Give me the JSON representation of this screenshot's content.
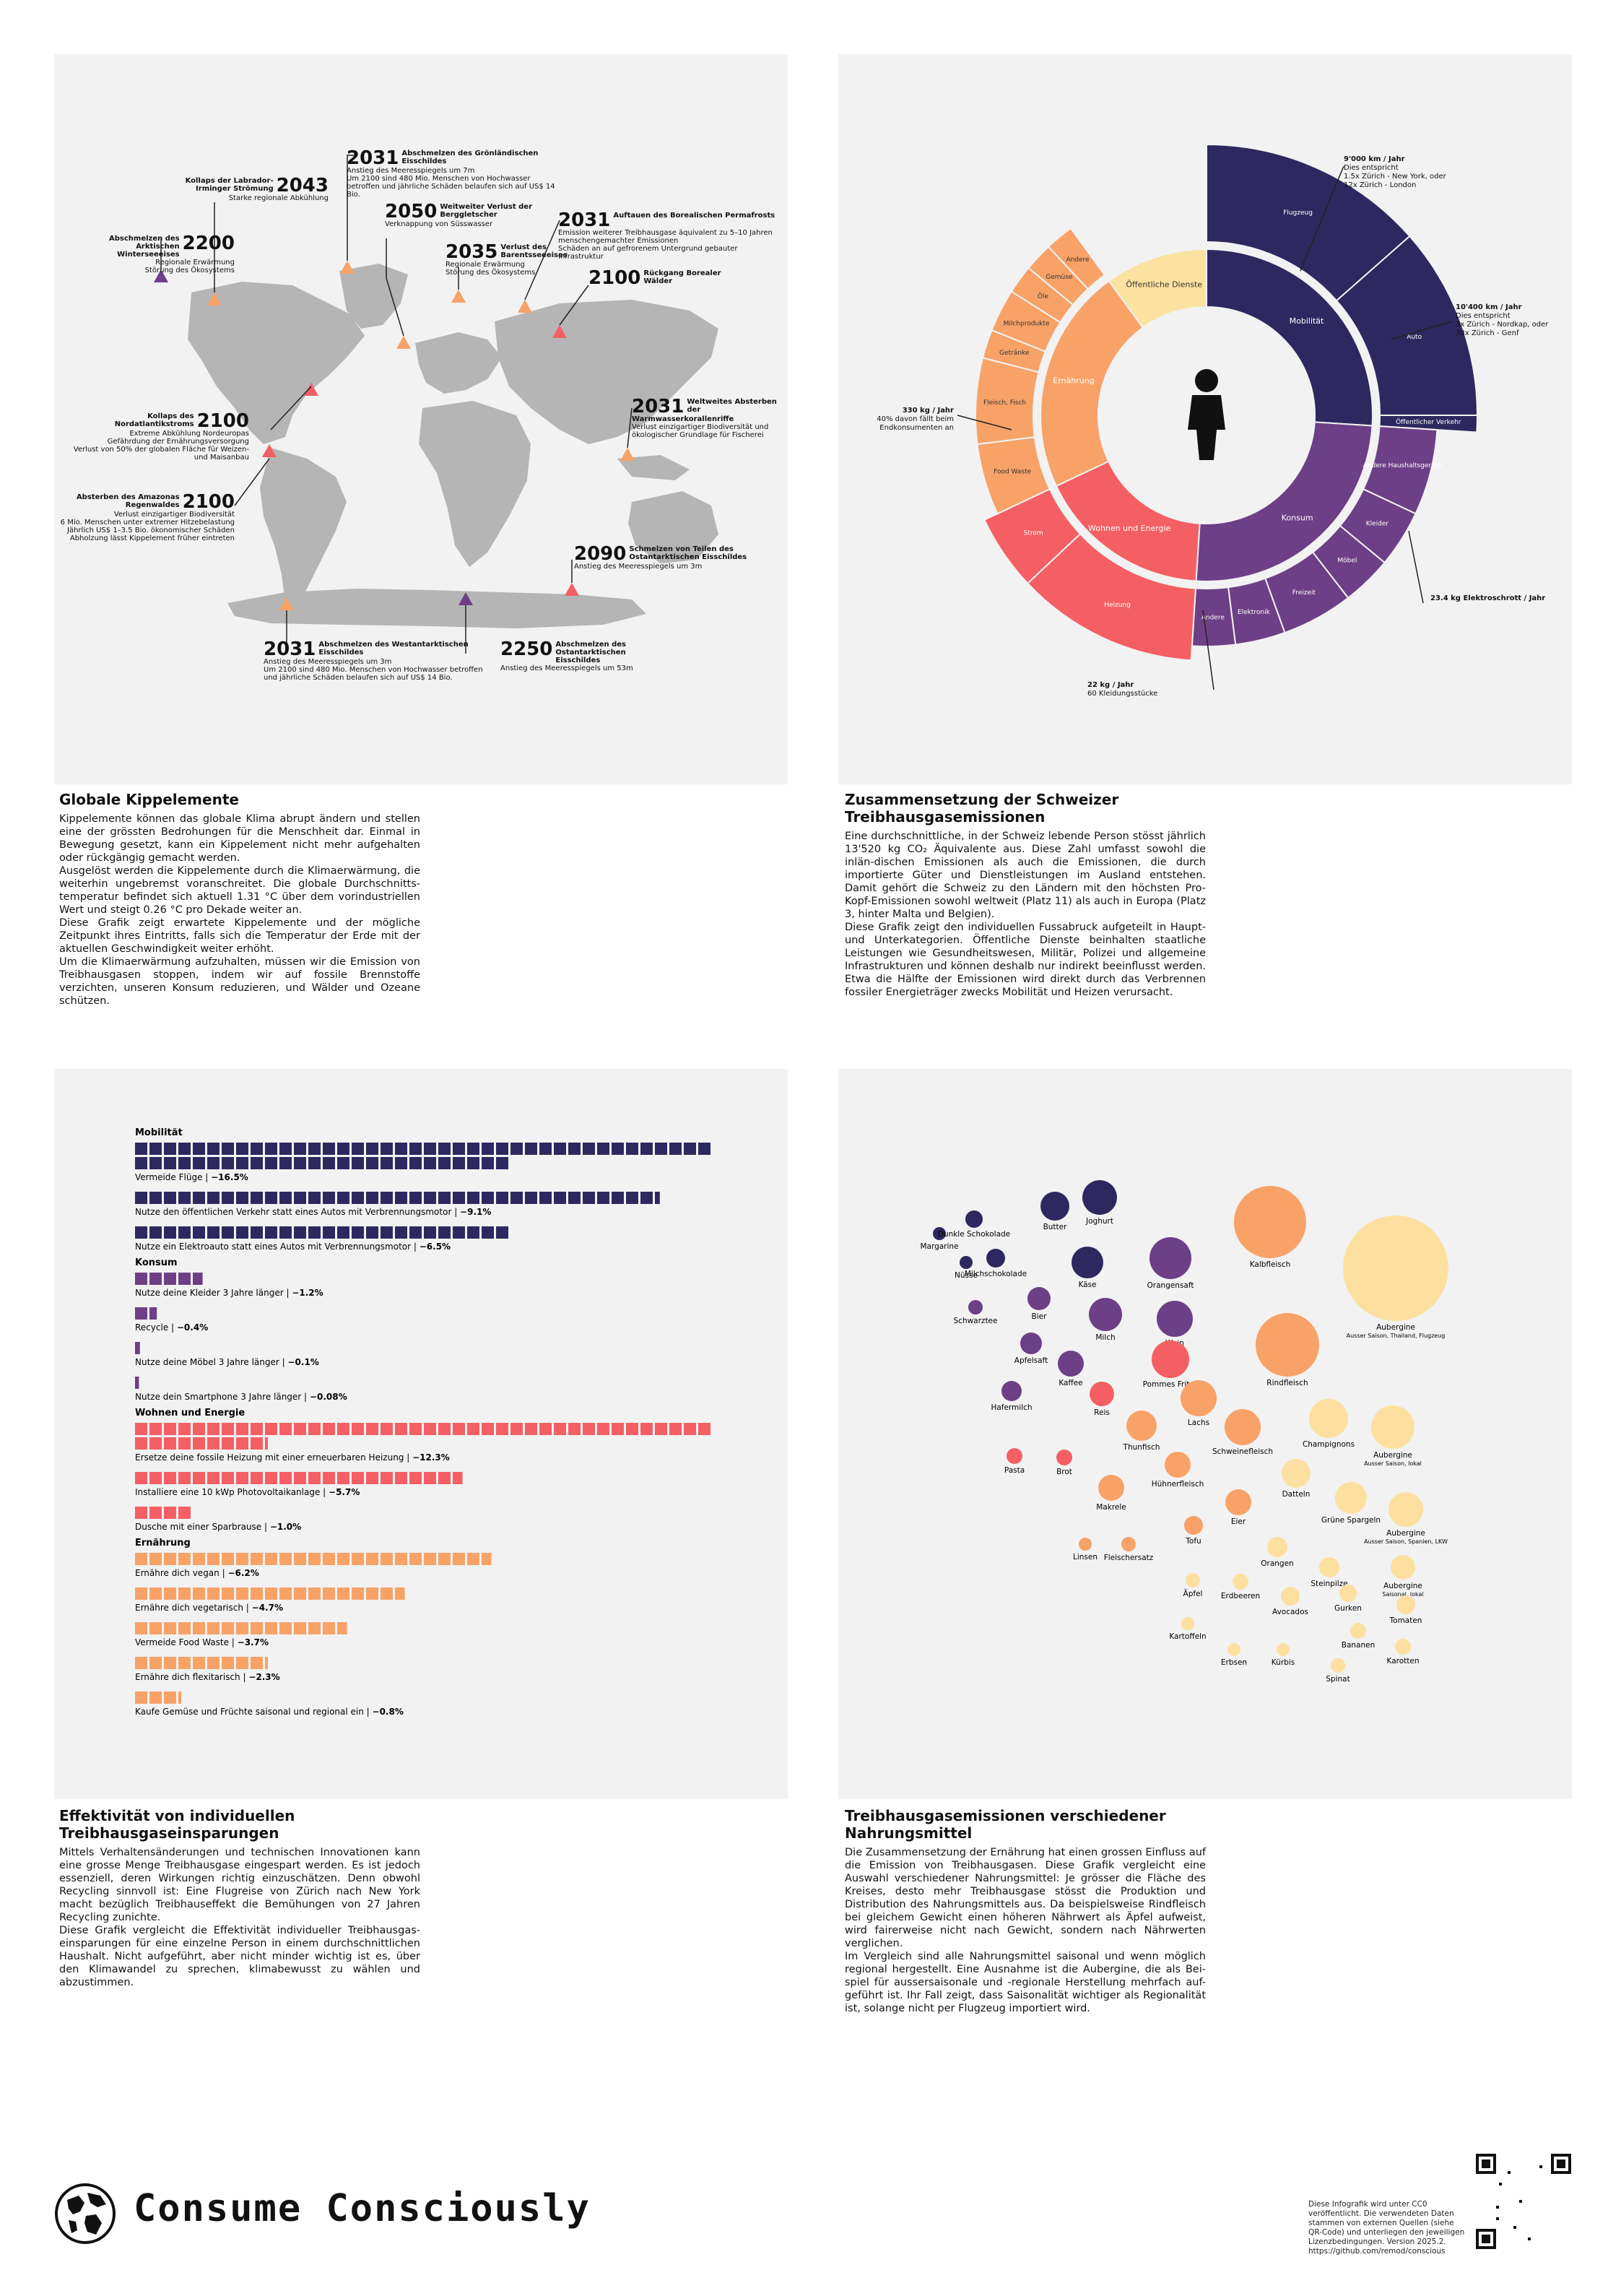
{
  "map": {
    "annotations": [
      {
        "year": "2043",
        "title": "Kollaps der Labrador-Irminger Strömung",
        "text": "Starke regionale Abkühlung"
      },
      {
        "year": "2031",
        "title": "Abschmelzen des Grönländischen Eisschildes",
        "text": "Anstieg des Meeresspiegels um 7m\nUm 2100 sind 480 Mio. Menschen von Hochwasser betroffen und jährliche Schäden belaufen sich auf US$ 14 Bio."
      },
      {
        "year": "2200",
        "title": "Abschmelzen des Arktischen Winterseeeises",
        "text": "Regionale Erwärmung\nStörung des Ökosystems"
      },
      {
        "year": "2050",
        "title": "Weitweiter Verlust der Berggletscher",
        "text": "Verknappung von Süsswasser"
      },
      {
        "year": "2031",
        "title": "Auftauen des Borealischen Permafrosts",
        "text": "Emission weiterer Treibhausgase äquivalent zu 5–10 Jahren menschengemachter Emissionen\nSchäden an auf gefrorenem Untergrund gebauter Infrastruktur"
      },
      {
        "year": "2035",
        "title": "Verlust des Barentsseeeises",
        "text": "Regionale Erwärmung\nStörung des Ökosystems"
      },
      {
        "year": "2100",
        "title": "Rückgang Borealer Wälder",
        "text": ""
      },
      {
        "year": "2100",
        "title": "Kollaps des Nordatlantikstroms",
        "text": "Extreme Abkühlung Nordeuropas\nGefährdung der Ernährungsversorgung\nVerlust von 50% der globalen Fläche für Weizen- und Maisanbau"
      },
      {
        "year": "2031",
        "title": "Weltweites Absterben der Warmwasserkorallenriffe",
        "text": "Verlust einzigartiger Biodiversität und ökologischer Grundlage für Fischerei"
      },
      {
        "year": "2100",
        "title": "Absterben des Amazonas Regenwaldes",
        "text": "Verlust einzigartiger Biodiversität\n6 Mio. Menschen unter extremer Hitzebelastung\nJährlich US$ 1–3.5 Bio. ökonomischer Schäden\nAbholzung lässt Kippelement früher eintreten"
      },
      {
        "year": "2090",
        "title": "Schmelzen von Teilen des Ostantarktischen Eisschildes",
        "text": "Anstieg des Meeresspiegels um 3m"
      },
      {
        "year": "2031",
        "title": "Abschmelzen des Westantarktischen Eisschildes",
        "text": "Anstieg des Meeresspiegels um 3m\nUm 2100 sind 480 Mio. Menschen von Hochwasser betroffen und jährliche Schäden belaufen sich auf US$ 14 Bio."
      },
      {
        "year": "2250",
        "title": "Abschmelzen des Ostantarktischen Eisschildes",
        "text": "Anstieg des Meeresspiegels um 53m"
      }
    ]
  },
  "captions": {
    "c1": {
      "title": "Globale Kippelemente",
      "body": "Kippelemente können das globale Klima abrupt ändern und stellen eine der grössten Bedrohungen für die Menschheit dar. Einmal in Bewegung gesetzt, kann ein Kippelement nicht mehr aufgehalten oder rückgängig gemacht werden.\nAusgelöst werden die Kippelemente durch die Klimaerwärmung, die weiterhin ungebremst voranschreitet. Die globale Durchschnitts-temperatur befindet sich aktuell 1.31 °C über dem vorindustriellen Wert und steigt 0.26 °C pro Dekade weiter an.\nDiese Grafik zeigt erwartete Kippelemente und der mögliche Zeitpunkt ihres Eintritts, falls sich die Temperatur der Erde mit der aktuellen Geschwindigkeit weiter erhöht.\nUm die Klimaerwärmung aufzuhalten, müssen wir die Emission von Treibhausgasen stoppen, indem wir auf fossile Brennstoffe verzichten, unseren Konsum reduzieren, und Wälder und Ozeane schützen."
    },
    "c2": {
      "title": "Zusammensetzung der Schweizer Treibhausgasemissionen",
      "body": "Eine durchschnittliche, in der Schweiz lebende Person stösst jährlich 13'520 kg CO₂ Äquivalente aus. Diese Zahl umfasst sowohl die inlän-dischen Emissionen als auch die Emissionen, die durch importierte Güter und Dienstleistungen im Ausland entstehen. Damit gehört die Schweiz zu den Ländern mit den höchsten Pro-Kopf-Emissionen sowohl weltweit (Platz 11) als auch in Europa (Platz 3, hinter Malta und Belgien).\nDiese Grafik zeigt den individuellen Fussabruck aufgeteilt in Haupt- und Unterkategorien. Öffentliche Dienste beinhalten staatliche Leistungen wie Gesundheitswesen, Militär, Polizei und allgemeine Infrastrukturen und können deshalb nur indirekt beeinflusst werden. Etwa die Hälfte der Emissionen wird direkt durch das Verbrennen fossiler Energieträger zwecks Mobilität und Heizen verursacht."
    },
    "c3": {
      "title": "Effektivität von individuellen Treibhausgaseinsparungen",
      "body": "Mittels Verhaltensänderungen und technischen Innovationen kann eine grosse Menge Treibhausgase eingespart werden. Es ist jedoch essenziell, deren Wirkungen richtig einzuschätzen. Denn obwohl Recycling sinnvoll ist: Eine Flugreise von Zürich nach New York macht bezüglich Treibhauseffekt die Bemühungen von 27 Jahren Recycling zunichte.\nDiese Grafik vergleicht die Effektivität individueller Treibhausgas-einsparungen für eine einzelne Person in einem durchschnittlichen Haushalt. Nicht aufgeführt, aber nicht minder wichtig ist es, über den Klimawandel zu sprechen, klimabewusst zu wählen und abzustimmen."
    },
    "c4": {
      "title": "Treibhausgasemissionen verschiedener Nahrungsmittel",
      "body": "Die Zusammensetzung der Ernährung hat einen grossen Einfluss auf die Emission von Treibhausgasen. Diese Grafik vergleicht eine Auswahl verschiedener Nahrungsmittel: Je grösser die Fläche des Kreises, desto mehr Treibhausgase stösst die Produktion und Distribution des Nahrungsmittels aus. Da beispielsweise Rindfleisch bei gleichem Gewicht einen höheren Nährwert als Äpfel aufweist, wird fairerweise nicht nach Gewicht, sondern nach Nährwerten verglichen.\nIm Vergleich sind alle Nahrungsmittel saisonal und wenn möglich regional hergestellt. Eine Ausnahme ist die Aubergine, die als Bei-spiel für aussersaisonale und -regionale Herstellung mehrfach auf-geführt ist. Ihr Fall zeigt, dass Saisonalität wichtiger als Regionalität ist, solange nicht per Flugzeug importiert wird."
    }
  },
  "sunburst": {
    "inner": [
      {
        "name": "Mobilität",
        "share": 0.26,
        "color": "#2e2860"
      },
      {
        "name": "Konsum",
        "share": 0.25,
        "color": "#6d3f86"
      },
      {
        "name": "Wohnen und Energie",
        "share": 0.17,
        "color": "#f45f64"
      },
      {
        "name": "Ernährung",
        "share": 0.22,
        "color": "#f8a268"
      },
      {
        "name": "Öffentliche Dienste",
        "share": 0.1,
        "color": "#fce2a0"
      }
    ],
    "outer": [
      {
        "name": "Flugzeug",
        "parent": 0,
        "share": 0.135
      },
      {
        "name": "Auto",
        "parent": 0,
        "share": 0.115
      },
      {
        "name": "Öffentlicher Verkehr",
        "parent": 0,
        "share": 0.01
      },
      {
        "name": "Andere Haushaltsgeräte",
        "parent": 1,
        "share": 0.06
      },
      {
        "name": "Kleider",
        "parent": 1,
        "share": 0.04
      },
      {
        "name": "Möbel",
        "parent": 1,
        "share": 0.035
      },
      {
        "name": "Freizeit",
        "parent": 1,
        "share": 0.05
      },
      {
        "name": "Elektronik",
        "parent": 1,
        "share": 0.035
      },
      {
        "name": "Andere",
        "parent": 1,
        "share": 0.03
      },
      {
        "name": "Heizung",
        "parent": 2,
        "share": 0.12
      },
      {
        "name": "Strom",
        "parent": 2,
        "share": 0.05
      },
      {
        "name": "Food Waste",
        "parent": 3,
        "share": 0.05
      },
      {
        "name": "Fleisch, Fisch",
        "parent": 3,
        "share": 0.06
      },
      {
        "name": "Getränke",
        "parent": 3,
        "share": 0.02
      },
      {
        "name": "Milchprodukte",
        "parent": 3,
        "share": 0.03
      },
      {
        "name": "Öle",
        "parent": 3,
        "share": 0.02
      },
      {
        "name": "Gemüse",
        "parent": 3,
        "share": 0.02
      },
      {
        "name": "Andere",
        "parent": 3,
        "share": 0.02
      }
    ],
    "center_label": "Person",
    "callouts": [
      {
        "value": "9'000 km / Jahr",
        "text": "Dies entspricht\n1.5x Zürich - New York, oder\n12x Zürich - London"
      },
      {
        "value": "10'400 km / Jahr",
        "text": "Dies entspricht\n3x Zürich - Nordkap, oder\n38x Zürich - Genf"
      },
      {
        "value": "23.4 kg Elektroschrott / Jahr",
        "text": ""
      },
      {
        "value": "22 kg / Jahr",
        "text": "60 Kleidungsstücke"
      },
      {
        "value": "330 kg / Jahr",
        "text": "40% davon fällt beim\nEndkonsumenten an"
      }
    ]
  },
  "savings": {
    "unit_value_pct": 0.25,
    "groups": [
      {
        "name": "Mobilität",
        "color": "#2e2860",
        "items": [
          {
            "label": "Vermeide Flüge",
            "value": "−16.5%",
            "pct": 16.5
          },
          {
            "label": "Nutze den öffentlichen Verkehr statt eines Autos mit Verbrennungsmotor",
            "value": "−9.1%",
            "pct": 9.1
          },
          {
            "label": "Nutze ein Elektroauto statt eines Autos mit Verbrennungsmotor",
            "value": "−6.5%",
            "pct": 6.5
          }
        ]
      },
      {
        "name": "Konsum",
        "color": "#6d3f86",
        "items": [
          {
            "label": "Nutze deine Kleider 3 Jahre länger",
            "value": "−1.2%",
            "pct": 1.2
          },
          {
            "label": "Recycle",
            "value": "−0.4%",
            "pct": 0.4
          },
          {
            "label": "Nutze deine Möbel 3 Jahre länger",
            "value": "−0.1%",
            "pct": 0.1
          },
          {
            "label": "Nutze dein Smartphone 3 Jahre länger",
            "value": "−0.08%",
            "pct": 0.08
          }
        ]
      },
      {
        "name": "Wohnen und Energie",
        "color": "#f45f64",
        "items": [
          {
            "label": "Ersetze deine fossile Heizung mit einer erneuerbaren Heizung",
            "value": "−12.3%",
            "pct": 12.3
          },
          {
            "label": "Installiere eine 10 kWp Photovoltaikanlage",
            "value": "−5.7%",
            "pct": 5.7
          },
          {
            "label": "Dusche mit einer Sparbrause",
            "value": "−1.0%",
            "pct": 1.0
          }
        ]
      },
      {
        "name": "Ernährung",
        "color": "#f8a268",
        "items": [
          {
            "label": "Ernähre dich vegan",
            "value": "−6.2%",
            "pct": 6.2
          },
          {
            "label": "Ernähre dich vegetarisch",
            "value": "−4.7%",
            "pct": 4.7
          },
          {
            "label": "Vermeide Food Waste",
            "value": "−3.7%",
            "pct": 3.7
          },
          {
            "label": "Ernähre dich flexitarisch",
            "value": "−2.3%",
            "pct": 2.3
          },
          {
            "label": "Kaufe Gemüse und Früchte saisonal und regional ein",
            "value": "−0.8%",
            "pct": 0.8
          }
        ]
      }
    ]
  },
  "foods": [
    {
      "name": "Margarine",
      "sub": "",
      "r": 9,
      "color": "#2e2860"
    },
    {
      "name": "Dunkle Schokolade",
      "sub": "",
      "r": 12,
      "color": "#2e2860"
    },
    {
      "name": "Butter",
      "sub": "",
      "r": 20,
      "color": "#2e2860"
    },
    {
      "name": "Joghurt",
      "sub": "",
      "r": 24,
      "color": "#2e2860"
    },
    {
      "name": "Nüsse",
      "sub": "",
      "r": 9,
      "color": "#2e2860"
    },
    {
      "name": "Milchschokolade",
      "sub": "",
      "r": 13,
      "color": "#2e2860"
    },
    {
      "name": "Käse",
      "sub": "",
      "r": 22,
      "color": "#2e2860"
    },
    {
      "name": "Orangensaft",
      "sub": "",
      "r": 29,
      "color": "#6d3f86"
    },
    {
      "name": "Kalbfleisch",
      "sub": "",
      "r": 50,
      "color": "#f8a268"
    },
    {
      "name": "Aubergine",
      "sub": "Ausser Saison, Thailand, Flugzeug",
      "r": 73,
      "color": "#fde0a0"
    },
    {
      "name": "Schwarztee",
      "sub": "",
      "r": 10,
      "color": "#6d3f86"
    },
    {
      "name": "Bier",
      "sub": "",
      "r": 16,
      "color": "#6d3f86"
    },
    {
      "name": "Milch",
      "sub": "",
      "r": 23,
      "color": "#6d3f86"
    },
    {
      "name": "Wein",
      "sub": "",
      "r": 25,
      "color": "#6d3f86"
    },
    {
      "name": "Apfelsaft",
      "sub": "",
      "r": 15,
      "color": "#6d3f86"
    },
    {
      "name": "Kaffee",
      "sub": "",
      "r": 18,
      "color": "#6d3f86"
    },
    {
      "name": "Pommes Frites",
      "sub": "",
      "r": 26,
      "color": "#f45f64"
    },
    {
      "name": "Rindfleisch",
      "sub": "",
      "r": 44,
      "color": "#f8a268"
    },
    {
      "name": "Hafermilch",
      "sub": "",
      "r": 14,
      "color": "#6d3f86"
    },
    {
      "name": "Reis",
      "sub": "",
      "r": 17,
      "color": "#f45f64"
    },
    {
      "name": "Lachs",
      "sub": "",
      "r": 25,
      "color": "#f8a268"
    },
    {
      "name": "Thunfisch",
      "sub": "",
      "r": 21,
      "color": "#f8a268"
    },
    {
      "name": "Schweinefleisch",
      "sub": "",
      "r": 25,
      "color": "#f8a268"
    },
    {
      "name": "Champignons",
      "sub": "",
      "r": 27,
      "color": "#fde0a0"
    },
    {
      "name": "Aubergine",
      "sub": "Ausser Saison, lokal",
      "r": 30,
      "color": "#fde0a0"
    },
    {
      "name": "Pasta",
      "sub": "",
      "r": 11,
      "color": "#f45f64"
    },
    {
      "name": "Brot",
      "sub": "",
      "r": 11,
      "color": "#f45f64"
    },
    {
      "name": "Hühnerfleisch",
      "sub": "",
      "r": 18,
      "color": "#f8a268"
    },
    {
      "name": "Datteln",
      "sub": "",
      "r": 20,
      "color": "#fde0a0"
    },
    {
      "name": "Makrele",
      "sub": "",
      "r": 18,
      "color": "#f8a268"
    },
    {
      "name": "Eier",
      "sub": "",
      "r": 18,
      "color": "#f8a268"
    },
    {
      "name": "Grüne Spargeln",
      "sub": "",
      "r": 22,
      "color": "#fde0a0"
    },
    {
      "name": "Aubergine",
      "sub": "Ausser Saison, Spanien, LKW",
      "r": 24,
      "color": "#fde0a0"
    },
    {
      "name": "Tofu",
      "sub": "",
      "r": 13,
      "color": "#f8a268"
    },
    {
      "name": "Linsen",
      "sub": "",
      "r": 9,
      "color": "#f8a268"
    },
    {
      "name": "Fleischersatz",
      "sub": "",
      "r": 10,
      "color": "#f8a268"
    },
    {
      "name": "Orangen",
      "sub": "",
      "r": 14,
      "color": "#fde0a0"
    },
    {
      "name": "Steinpilze",
      "sub": "",
      "r": 14,
      "color": "#fde0a0"
    },
    {
      "name": "Aubergine",
      "sub": "Saisonal, lokal",
      "r": 17,
      "color": "#fde0a0"
    },
    {
      "name": "Äpfel",
      "sub": "",
      "r": 10,
      "color": "#fde0a0"
    },
    {
      "name": "Erdbeeren",
      "sub": "",
      "r": 11,
      "color": "#fde0a0"
    },
    {
      "name": "Avocados",
      "sub": "",
      "r": 13,
      "color": "#fde0a0"
    },
    {
      "name": "Gurken",
      "sub": "",
      "r": 12,
      "color": "#fde0a0"
    },
    {
      "name": "Tomaten",
      "sub": "",
      "r": 13,
      "color": "#fde0a0"
    },
    {
      "name": "Kartoffeln",
      "sub": "",
      "r": 9,
      "color": "#fde0a0"
    },
    {
      "name": "Bananen",
      "sub": "",
      "r": 11,
      "color": "#fde0a0"
    },
    {
      "name": "Erbsen",
      "sub": "",
      "r": 9,
      "color": "#fde0a0"
    },
    {
      "name": "Kürbis",
      "sub": "",
      "r": 9,
      "color": "#fde0a0"
    },
    {
      "name": "Karotten",
      "sub": "",
      "r": 11,
      "color": "#fde0a0"
    },
    {
      "name": "Spinat",
      "sub": "",
      "r": 10,
      "color": "#fde0a0"
    }
  ],
  "footer": {
    "title": "Consume Consciously",
    "legal": "Diese Infografik wird unter CC0 veröffentlicht. Die verwendeten Daten stammen von externen Quellen (siehe QR-Code) und unterliegen den jeweiligen Lizenzbedingungen. Version 2025.2. https://github.com/remod/conscious"
  }
}
